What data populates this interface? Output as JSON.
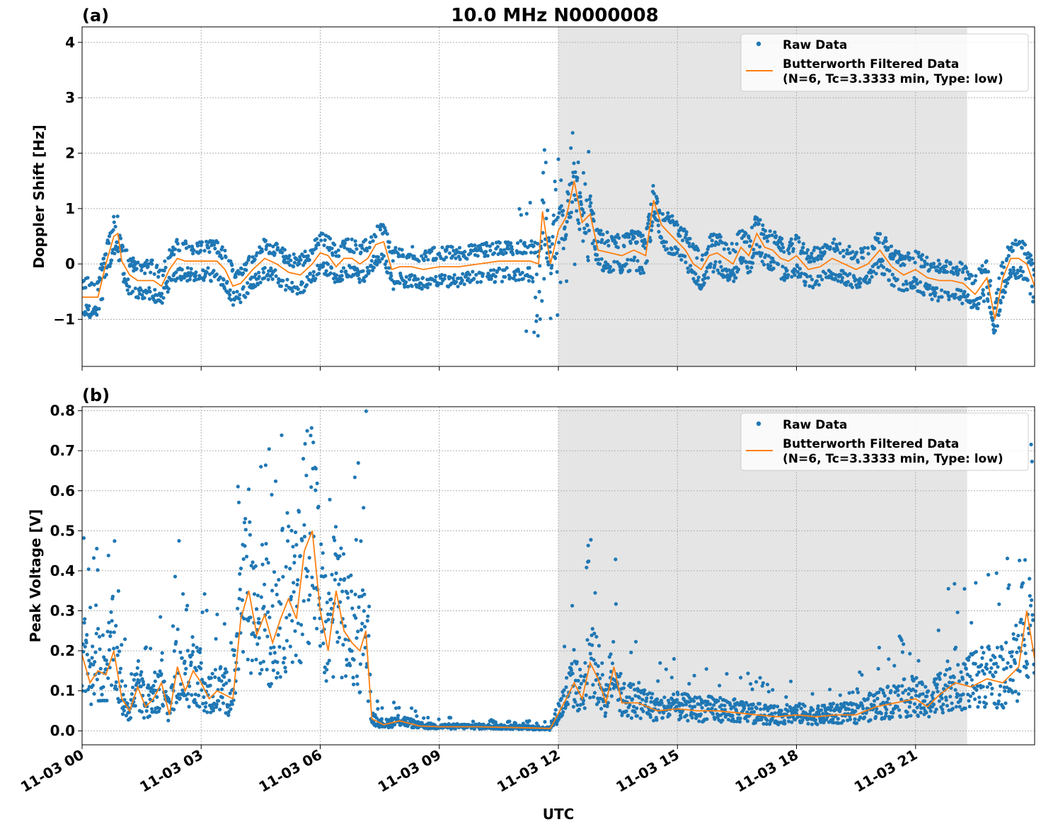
{
  "figure": {
    "title": "10.0 MHz N0000008",
    "xlabel": "UTC",
    "x_ticks": [
      "11-03 00",
      "11-03 03",
      "11-03 06",
      "11-03 09",
      "11-03 12",
      "11-03 15",
      "11-03 18",
      "11-03 21"
    ],
    "colors": {
      "raw": "#1f77b4",
      "filtered": "#ff7f0e",
      "shade": "#e5e5e5",
      "grid": "#b0b0b0"
    }
  },
  "chart_data": [
    {
      "type": "scatter",
      "panel_label": "(a)",
      "ylabel": "Doppler Shift [Hz]",
      "ylim": [
        -1.85,
        4.28
      ],
      "xlim_hours": [
        0,
        24
      ],
      "y_ticks": [
        4,
        3,
        2,
        1,
        0,
        -1
      ],
      "y_tick_labels": [
        "4",
        "3",
        "2",
        "1",
        "0",
        "−1"
      ],
      "shaded_interval_hours": [
        12,
        22.3
      ],
      "grid": true,
      "legend": {
        "placement": "top-right",
        "raw_label": "Raw Data",
        "filtered_label_line1": "Butterworth Filtered Data",
        "filtered_label_line2": "(N=6, Tc=3.3333 min, Type: low)"
      },
      "series": [
        {
          "name": "Butterworth Filtered Data",
          "x_hours": [
            0,
            0.2,
            0.4,
            0.6,
            0.8,
            0.9,
            1.0,
            1.2,
            1.4,
            1.6,
            1.8,
            2.0,
            2.2,
            2.4,
            2.6,
            2.8,
            3.0,
            3.2,
            3.4,
            3.6,
            3.8,
            4.0,
            4.3,
            4.6,
            4.9,
            5.2,
            5.5,
            5.8,
            6.0,
            6.2,
            6.4,
            6.6,
            6.8,
            7.0,
            7.2,
            7.4,
            7.6,
            7.8,
            8.0,
            8.3,
            8.6,
            9.0,
            9.5,
            10.0,
            10.5,
            11.0,
            11.3,
            11.5,
            11.6,
            11.8,
            12.0,
            12.2,
            12.4,
            12.6,
            12.8,
            13.0,
            13.3,
            13.6,
            13.9,
            14.2,
            14.4,
            14.6,
            14.8,
            15.0,
            15.2,
            15.4,
            15.6,
            15.8,
            16.0,
            16.2,
            16.4,
            16.6,
            16.8,
            17.0,
            17.2,
            17.4,
            17.6,
            17.8,
            18.0,
            18.3,
            18.6,
            18.9,
            19.2,
            19.5,
            19.8,
            20.1,
            20.4,
            20.7,
            21.0,
            21.3,
            21.6,
            21.9,
            22.2,
            22.5,
            22.8,
            23.0,
            23.2,
            23.4,
            23.6,
            23.8,
            24.0
          ],
          "y": [
            -0.6,
            -0.6,
            -0.6,
            0.0,
            0.5,
            0.55,
            0.05,
            -0.2,
            -0.3,
            -0.3,
            -0.3,
            -0.4,
            -0.1,
            0.1,
            0.05,
            0.05,
            0.05,
            0.05,
            0.05,
            -0.1,
            -0.4,
            -0.35,
            -0.1,
            0.1,
            0.0,
            -0.15,
            -0.2,
            0.0,
            0.2,
            0.15,
            -0.05,
            0.1,
            0.1,
            0.0,
            0.1,
            0.35,
            0.4,
            -0.1,
            -0.05,
            -0.05,
            -0.1,
            -0.05,
            -0.05,
            0.0,
            0.05,
            0.05,
            0.05,
            0.0,
            0.95,
            0.0,
            0.6,
            0.85,
            1.5,
            0.75,
            0.9,
            0.25,
            0.2,
            0.15,
            0.25,
            0.15,
            1.15,
            0.7,
            0.55,
            0.4,
            0.25,
            0.0,
            -0.1,
            0.15,
            0.2,
            0.1,
            0.0,
            0.3,
            0.15,
            0.55,
            0.3,
            0.25,
            0.1,
            0.05,
            0.15,
            -0.1,
            -0.05,
            0.1,
            0.0,
            -0.1,
            0.0,
            0.25,
            -0.05,
            -0.2,
            -0.1,
            -0.25,
            -0.3,
            -0.3,
            -0.35,
            -0.55,
            -0.25,
            -1.0,
            -0.25,
            0.1,
            0.1,
            0.0,
            -0.4
          ]
        }
      ]
    },
    {
      "type": "scatter",
      "panel_label": "(b)",
      "ylabel": "Peak Voltage [V]",
      "ylim": [
        -0.035,
        0.81
      ],
      "xlim_hours": [
        0,
        24
      ],
      "y_ticks": [
        0.0,
        0.1,
        0.2,
        0.3,
        0.4,
        0.5,
        0.6,
        0.7,
        0.8
      ],
      "y_tick_labels": [
        "0.0",
        "0.1",
        "0.2",
        "0.3",
        "0.4",
        "0.5",
        "0.6",
        "0.7",
        "0.8"
      ],
      "shaded_interval_hours": [
        12,
        22.3
      ],
      "grid": true,
      "legend": {
        "placement": "top-right",
        "raw_label": "Raw Data",
        "filtered_label_line1": "Butterworth Filtered Data",
        "filtered_label_line2": "(N=6, Tc=3.3333 min, Type: low)"
      },
      "series": [
        {
          "name": "Butterworth Filtered Data",
          "x_hours": [
            0,
            0.2,
            0.4,
            0.6,
            0.8,
            1.0,
            1.2,
            1.4,
            1.6,
            1.8,
            2.0,
            2.2,
            2.4,
            2.6,
            2.8,
            3.0,
            3.2,
            3.4,
            3.6,
            3.8,
            4.0,
            4.2,
            4.4,
            4.6,
            4.8,
            5.0,
            5.2,
            5.4,
            5.6,
            5.8,
            6.0,
            6.2,
            6.4,
            6.6,
            6.8,
            7.0,
            7.15,
            7.3,
            7.6,
            8.0,
            8.5,
            9.0,
            10.0,
            11.0,
            11.8,
            12.2,
            12.4,
            12.6,
            12.8,
            13.0,
            13.2,
            13.4,
            13.6,
            14.0,
            14.5,
            15.0,
            15.5,
            16.0,
            16.5,
            17.0,
            17.5,
            18.0,
            18.5,
            19.0,
            19.5,
            20.0,
            20.5,
            21.0,
            21.3,
            21.6,
            22.0,
            22.4,
            22.8,
            23.2,
            23.6,
            23.8,
            24.0
          ],
          "y": [
            0.19,
            0.12,
            0.15,
            0.14,
            0.2,
            0.08,
            0.05,
            0.11,
            0.06,
            0.08,
            0.12,
            0.04,
            0.16,
            0.1,
            0.15,
            0.12,
            0.08,
            0.1,
            0.09,
            0.08,
            0.28,
            0.35,
            0.24,
            0.29,
            0.22,
            0.28,
            0.33,
            0.28,
            0.45,
            0.5,
            0.3,
            0.2,
            0.35,
            0.25,
            0.22,
            0.2,
            0.25,
            0.03,
            0.015,
            0.025,
            0.012,
            0.01,
            0.01,
            0.008,
            0.006,
            0.08,
            0.12,
            0.08,
            0.17,
            0.13,
            0.07,
            0.16,
            0.07,
            0.07,
            0.05,
            0.055,
            0.05,
            0.05,
            0.045,
            0.04,
            0.035,
            0.04,
            0.035,
            0.04,
            0.04,
            0.06,
            0.07,
            0.08,
            0.06,
            0.09,
            0.12,
            0.11,
            0.13,
            0.12,
            0.16,
            0.3,
            0.18
          ]
        }
      ]
    }
  ]
}
